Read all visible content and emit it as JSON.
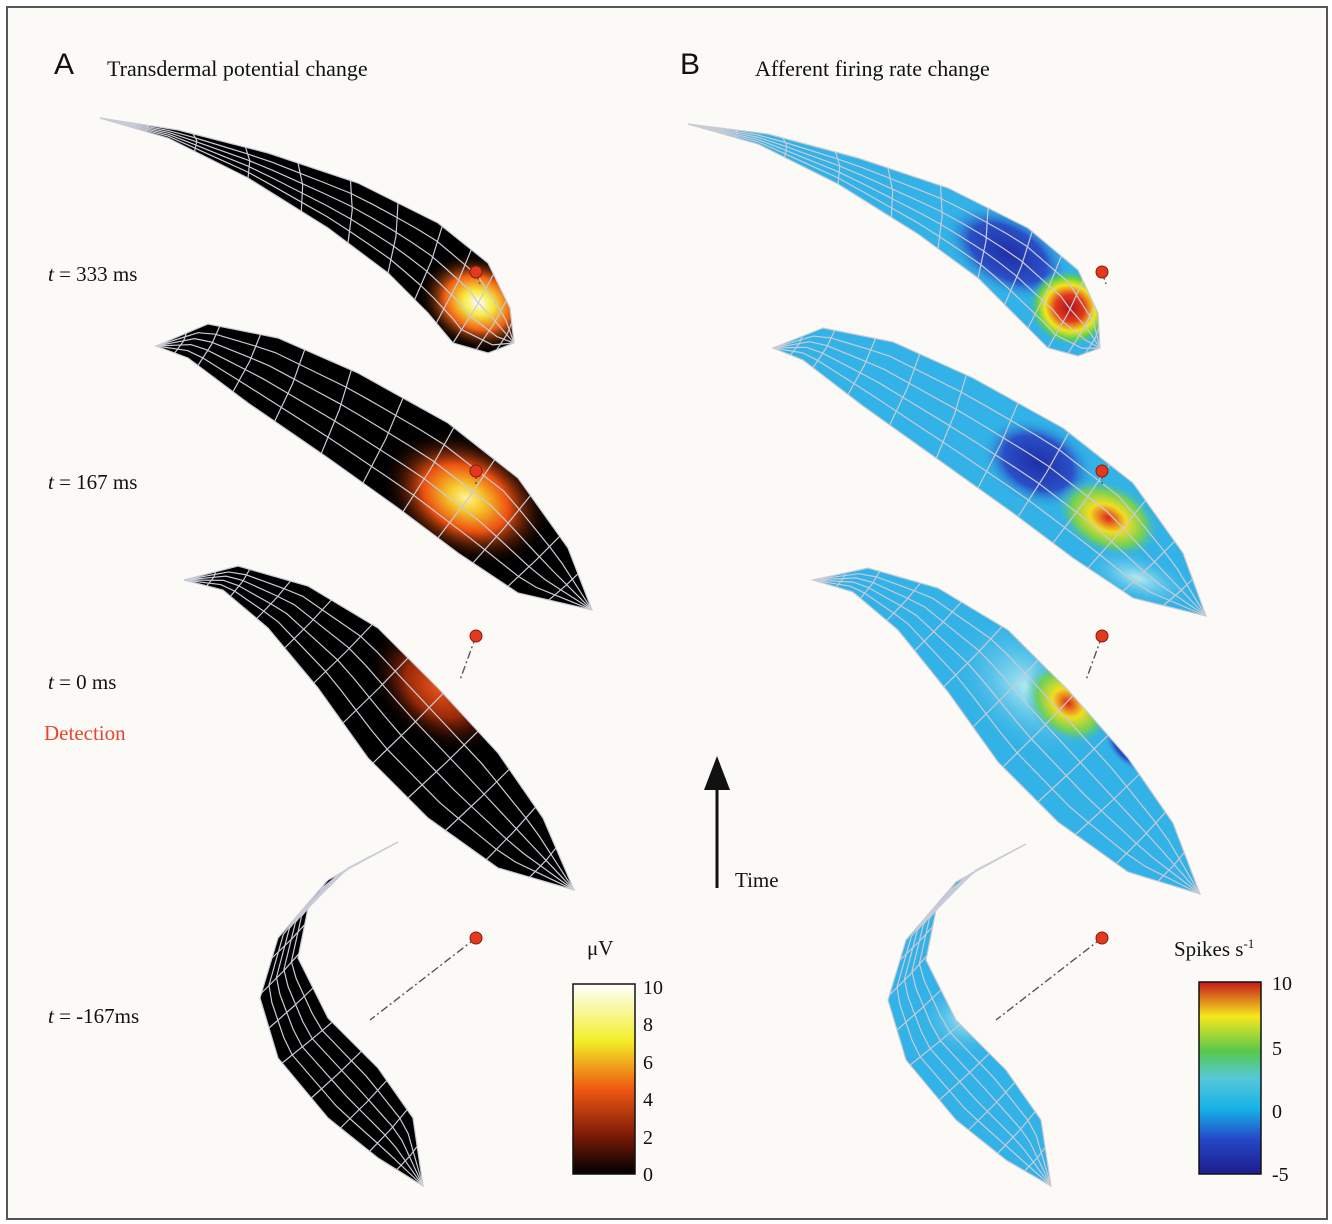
{
  "panel_a": {
    "letter": "A",
    "title": "Transdermal potential change",
    "colorbar": {
      "unit": "μV",
      "ticks": [
        "10",
        "8",
        "6",
        "4",
        "2",
        "0"
      ],
      "stops": [
        "#ffffff",
        "#f2ee28",
        "#f05a12",
        "#7a1a06",
        "#000000"
      ]
    }
  },
  "panel_b": {
    "letter": "B",
    "title": "Afferent firing rate change",
    "colorbar": {
      "unit": "Spikes s",
      "unit_exp": "-1",
      "ticks": [
        "10",
        "5",
        "0",
        "-5"
      ],
      "stops": [
        "#c51a1a",
        "#f7e81e",
        "#58c84a",
        "#55c8d8",
        "#17b2e8",
        "#2547c8",
        "#1c1c8a"
      ]
    }
  },
  "time_points": [
    {
      "var": "t",
      "rest": " = 333 ms"
    },
    {
      "var": "t",
      "rest": " = 167 ms"
    },
    {
      "var": "t",
      "rest": " = 0 ms"
    },
    {
      "var": "t",
      "rest": " = -167ms"
    }
  ],
  "detection_label": "Detection",
  "time_arrow_label": "Time",
  "colors": {
    "mesh_line": "#c9cbd6",
    "body_a": "#000000",
    "body_b": "#32b2e6",
    "prey_dot": "#e23a1e"
  }
}
